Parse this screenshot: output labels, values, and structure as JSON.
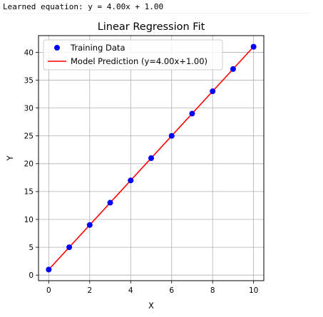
{
  "console": {
    "output": "Learned equation: y = 4.00x + 1.00"
  },
  "colors": {
    "points": "#0000ff",
    "line": "#ff0000",
    "grid": "#b0b0b0"
  },
  "chart_data": {
    "type": "scatter",
    "title": "Linear Regression Fit",
    "xlabel": "X",
    "ylabel": "Y",
    "xlim": [
      -0.5,
      10.5
    ],
    "ylim": [
      -1.0,
      43.0
    ],
    "xticks": [
      0,
      2,
      4,
      6,
      8,
      10
    ],
    "yticks": [
      0,
      5,
      10,
      15,
      20,
      25,
      30,
      35,
      40
    ],
    "grid": true,
    "legend_position": "top-left",
    "series": [
      {
        "name": "Training Data",
        "kind": "scatter",
        "color": "#0000ff",
        "x": [
          0,
          1,
          2,
          3,
          4,
          5,
          6,
          7,
          8,
          9,
          10
        ],
        "y": [
          1,
          5,
          9,
          13,
          17,
          21,
          25,
          29,
          33,
          37,
          41
        ]
      },
      {
        "name": "Model Prediction (y=4.00x+1.00)",
        "kind": "line",
        "color": "#ff0000",
        "x": [
          0,
          10
        ],
        "y": [
          1,
          41
        ]
      }
    ]
  }
}
